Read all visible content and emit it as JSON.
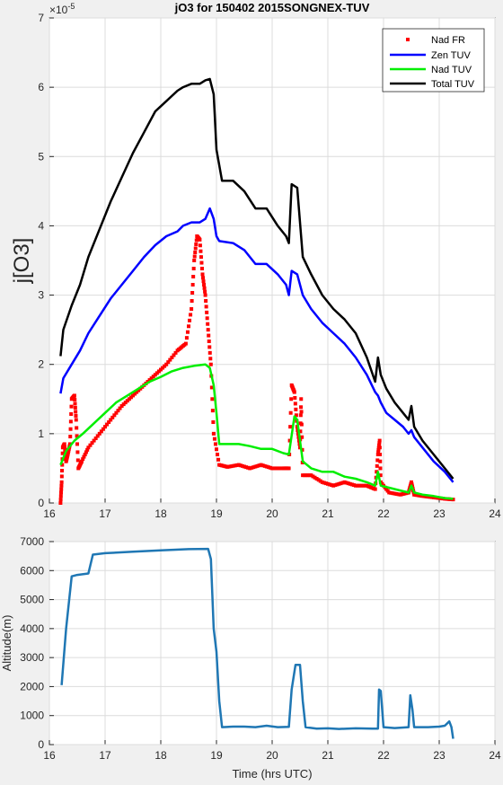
{
  "chart_data": [
    {
      "type": "line",
      "title": "jO3 for 150402 2015SONGNEX-TUV",
      "ylabel": "j[O3]",
      "xlabel": "",
      "exponent_label": "×10",
      "exponent_power": "-5",
      "xlim": [
        16,
        24
      ],
      "ylim": [
        0,
        7
      ],
      "xticks": [
        "16",
        "17",
        "18",
        "19",
        "20",
        "21",
        "22",
        "23",
        "24"
      ],
      "yticks": [
        "0",
        "1",
        "2",
        "3",
        "4",
        "5",
        "6",
        "7"
      ],
      "grid": true,
      "legend_position": "top-right",
      "series": [
        {
          "name": "Nad FR",
          "color": "#ff0000",
          "style": "markers",
          "points": [
            [
              16.2,
              0.0
            ],
            [
              16.22,
              0.3
            ],
            [
              16.24,
              0.8
            ],
            [
              16.27,
              0.85
            ],
            [
              16.3,
              0.6
            ],
            [
              16.33,
              0.7
            ],
            [
              16.37,
              0.85
            ],
            [
              16.4,
              1.5
            ],
            [
              16.45,
              1.55
            ],
            [
              16.48,
              1.2
            ],
            [
              16.52,
              0.5
            ],
            [
              16.58,
              0.6
            ],
            [
              16.7,
              0.8
            ],
            [
              16.9,
              1.0
            ],
            [
              17.1,
              1.2
            ],
            [
              17.3,
              1.4
            ],
            [
              17.5,
              1.55
            ],
            [
              17.7,
              1.7
            ],
            [
              17.9,
              1.85
            ],
            [
              18.1,
              2.0
            ],
            [
              18.3,
              2.2
            ],
            [
              18.45,
              2.3
            ],
            [
              18.55,
              2.8
            ],
            [
              18.6,
              3.5
            ],
            [
              18.65,
              3.85
            ],
            [
              18.7,
              3.8
            ],
            [
              18.75,
              3.3
            ],
            [
              18.8,
              3.0
            ],
            [
              18.85,
              2.5
            ],
            [
              18.9,
              2.0
            ],
            [
              18.95,
              1.0
            ],
            [
              19.05,
              0.55
            ],
            [
              19.2,
              0.52
            ],
            [
              19.4,
              0.55
            ],
            [
              19.6,
              0.5
            ],
            [
              19.8,
              0.55
            ],
            [
              20.0,
              0.5
            ],
            [
              20.2,
              0.5
            ],
            [
              20.3,
              0.5
            ],
            [
              20.35,
              1.7
            ],
            [
              20.4,
              1.6
            ],
            [
              20.45,
              1.1
            ],
            [
              20.5,
              0.8
            ],
            [
              20.52,
              1.5
            ],
            [
              20.55,
              0.4
            ],
            [
              20.7,
              0.4
            ],
            [
              20.9,
              0.3
            ],
            [
              21.1,
              0.25
            ],
            [
              21.3,
              0.3
            ],
            [
              21.5,
              0.25
            ],
            [
              21.7,
              0.25
            ],
            [
              21.85,
              0.2
            ],
            [
              21.9,
              0.7
            ],
            [
              21.93,
              0.9
            ],
            [
              21.95,
              0.3
            ],
            [
              22.1,
              0.15
            ],
            [
              22.3,
              0.12
            ],
            [
              22.45,
              0.15
            ],
            [
              22.5,
              0.3
            ],
            [
              22.55,
              0.12
            ],
            [
              22.7,
              0.1
            ],
            [
              22.9,
              0.08
            ],
            [
              23.1,
              0.06
            ],
            [
              23.25,
              0.05
            ]
          ]
        },
        {
          "name": "Zen TUV",
          "color": "#0000ff",
          "style": "line",
          "points": [
            [
              16.2,
              1.58
            ],
            [
              16.25,
              1.8
            ],
            [
              16.4,
              2.0
            ],
            [
              16.55,
              2.2
            ],
            [
              16.7,
              2.45
            ],
            [
              16.9,
              2.7
            ],
            [
              17.1,
              2.95
            ],
            [
              17.3,
              3.15
            ],
            [
              17.5,
              3.35
            ],
            [
              17.7,
              3.55
            ],
            [
              17.9,
              3.72
            ],
            [
              18.1,
              3.85
            ],
            [
              18.3,
              3.92
            ],
            [
              18.4,
              4.0
            ],
            [
              18.55,
              4.05
            ],
            [
              18.7,
              4.05
            ],
            [
              18.8,
              4.1
            ],
            [
              18.88,
              4.25
            ],
            [
              18.95,
              4.1
            ],
            [
              19.0,
              3.85
            ],
            [
              19.05,
              3.78
            ],
            [
              19.3,
              3.75
            ],
            [
              19.5,
              3.65
            ],
            [
              19.7,
              3.45
            ],
            [
              19.9,
              3.45
            ],
            [
              20.1,
              3.3
            ],
            [
              20.25,
              3.15
            ],
            [
              20.3,
              3.0
            ],
            [
              20.35,
              3.35
            ],
            [
              20.45,
              3.3
            ],
            [
              20.55,
              3.0
            ],
            [
              20.7,
              2.8
            ],
            [
              20.9,
              2.6
            ],
            [
              21.1,
              2.45
            ],
            [
              21.3,
              2.3
            ],
            [
              21.5,
              2.1
            ],
            [
              21.7,
              1.85
            ],
            [
              21.85,
              1.6
            ],
            [
              21.9,
              1.55
            ],
            [
              21.95,
              1.45
            ],
            [
              22.05,
              1.3
            ],
            [
              22.2,
              1.2
            ],
            [
              22.35,
              1.1
            ],
            [
              22.45,
              1.0
            ],
            [
              22.5,
              1.05
            ],
            [
              22.55,
              0.95
            ],
            [
              22.7,
              0.8
            ],
            [
              22.9,
              0.6
            ],
            [
              23.1,
              0.45
            ],
            [
              23.2,
              0.35
            ],
            [
              23.25,
              0.3
            ]
          ]
        },
        {
          "name": "Nad TUV",
          "color": "#00ee00",
          "style": "line",
          "points": [
            [
              16.2,
              0.55
            ],
            [
              16.3,
              0.75
            ],
            [
              16.45,
              0.9
            ],
            [
              16.6,
              1.0
            ],
            [
              16.8,
              1.15
            ],
            [
              17.0,
              1.3
            ],
            [
              17.2,
              1.45
            ],
            [
              17.4,
              1.55
            ],
            [
              17.6,
              1.65
            ],
            [
              17.8,
              1.75
            ],
            [
              18.0,
              1.82
            ],
            [
              18.2,
              1.9
            ],
            [
              18.4,
              1.95
            ],
            [
              18.6,
              1.98
            ],
            [
              18.8,
              2.0
            ],
            [
              18.88,
              1.95
            ],
            [
              18.95,
              1.7
            ],
            [
              19.0,
              1.3
            ],
            [
              19.05,
              0.85
            ],
            [
              19.2,
              0.85
            ],
            [
              19.4,
              0.85
            ],
            [
              19.6,
              0.82
            ],
            [
              19.8,
              0.78
            ],
            [
              20.0,
              0.78
            ],
            [
              20.2,
              0.72
            ],
            [
              20.3,
              0.7
            ],
            [
              20.4,
              1.25
            ],
            [
              20.45,
              1.2
            ],
            [
              20.55,
              0.6
            ],
            [
              20.7,
              0.5
            ],
            [
              20.9,
              0.45
            ],
            [
              21.1,
              0.45
            ],
            [
              21.3,
              0.38
            ],
            [
              21.5,
              0.35
            ],
            [
              21.7,
              0.3
            ],
            [
              21.85,
              0.25
            ],
            [
              21.9,
              0.45
            ],
            [
              21.95,
              0.25
            ],
            [
              22.1,
              0.22
            ],
            [
              22.3,
              0.18
            ],
            [
              22.45,
              0.15
            ],
            [
              22.5,
              0.25
            ],
            [
              22.55,
              0.15
            ],
            [
              22.7,
              0.12
            ],
            [
              22.9,
              0.1
            ],
            [
              23.1,
              0.07
            ],
            [
              23.25,
              0.06
            ]
          ]
        },
        {
          "name": "Total TUV",
          "color": "#000000",
          "style": "line",
          "points": [
            [
              16.2,
              2.12
            ],
            [
              16.25,
              2.5
            ],
            [
              16.4,
              2.85
            ],
            [
              16.55,
              3.15
            ],
            [
              16.7,
              3.55
            ],
            [
              16.9,
              3.95
            ],
            [
              17.1,
              4.35
            ],
            [
              17.3,
              4.7
            ],
            [
              17.5,
              5.05
            ],
            [
              17.7,
              5.35
            ],
            [
              17.9,
              5.65
            ],
            [
              18.1,
              5.8
            ],
            [
              18.3,
              5.95
            ],
            [
              18.4,
              6.0
            ],
            [
              18.55,
              6.05
            ],
            [
              18.7,
              6.05
            ],
            [
              18.8,
              6.1
            ],
            [
              18.88,
              6.12
            ],
            [
              18.95,
              5.9
            ],
            [
              19.0,
              5.1
            ],
            [
              19.1,
              4.65
            ],
            [
              19.3,
              4.65
            ],
            [
              19.5,
              4.5
            ],
            [
              19.7,
              4.25
            ],
            [
              19.9,
              4.25
            ],
            [
              20.1,
              4.0
            ],
            [
              20.25,
              3.85
            ],
            [
              20.3,
              3.75
            ],
            [
              20.35,
              4.6
            ],
            [
              20.45,
              4.55
            ],
            [
              20.55,
              3.55
            ],
            [
              20.7,
              3.3
            ],
            [
              20.9,
              3.0
            ],
            [
              21.1,
              2.8
            ],
            [
              21.3,
              2.65
            ],
            [
              21.5,
              2.45
            ],
            [
              21.7,
              2.1
            ],
            [
              21.85,
              1.75
            ],
            [
              21.9,
              2.1
            ],
            [
              21.95,
              1.85
            ],
            [
              22.05,
              1.65
            ],
            [
              22.2,
              1.45
            ],
            [
              22.35,
              1.3
            ],
            [
              22.45,
              1.2
            ],
            [
              22.5,
              1.4
            ],
            [
              22.55,
              1.1
            ],
            [
              22.7,
              0.9
            ],
            [
              22.9,
              0.7
            ],
            [
              23.1,
              0.5
            ],
            [
              23.2,
              0.4
            ],
            [
              23.25,
              0.35
            ]
          ]
        }
      ]
    },
    {
      "type": "line",
      "title": "",
      "xlabel": "Time (hrs UTC)",
      "ylabel": "Altitude(m)",
      "xlim": [
        16,
        24
      ],
      "ylim": [
        0,
        7000
      ],
      "xticks": [
        "16",
        "17",
        "18",
        "19",
        "20",
        "21",
        "22",
        "23",
        "24"
      ],
      "yticks": [
        "0",
        "1000",
        "2000",
        "3000",
        "4000",
        "5000",
        "6000",
        "7000"
      ],
      "grid": true,
      "series": [
        {
          "color": "#1f77b4",
          "style": "line",
          "points": [
            [
              16.22,
              2050
            ],
            [
              16.3,
              4000
            ],
            [
              16.4,
              5800
            ],
            [
              16.5,
              5850
            ],
            [
              16.7,
              5900
            ],
            [
              16.78,
              6550
            ],
            [
              17.0,
              6600
            ],
            [
              17.5,
              6650
            ],
            [
              18.0,
              6700
            ],
            [
              18.5,
              6740
            ],
            [
              18.85,
              6750
            ],
            [
              18.9,
              6400
            ],
            [
              18.95,
              4000
            ],
            [
              19.0,
              3200
            ],
            [
              19.05,
              1500
            ],
            [
              19.1,
              600
            ],
            [
              19.3,
              620
            ],
            [
              19.5,
              620
            ],
            [
              19.7,
              600
            ],
            [
              19.9,
              650
            ],
            [
              20.1,
              600
            ],
            [
              20.3,
              610
            ],
            [
              20.35,
              1900
            ],
            [
              20.42,
              2750
            ],
            [
              20.5,
              2750
            ],
            [
              20.55,
              1500
            ],
            [
              20.6,
              600
            ],
            [
              20.8,
              550
            ],
            [
              21.0,
              560
            ],
            [
              21.2,
              540
            ],
            [
              21.5,
              560
            ],
            [
              21.8,
              550
            ],
            [
              21.9,
              550
            ],
            [
              21.92,
              1900
            ],
            [
              21.95,
              1850
            ],
            [
              22.0,
              600
            ],
            [
              22.2,
              570
            ],
            [
              22.45,
              600
            ],
            [
              22.48,
              1700
            ],
            [
              22.52,
              1200
            ],
            [
              22.55,
              600
            ],
            [
              22.8,
              600
            ],
            [
              23.0,
              620
            ],
            [
              23.1,
              650
            ],
            [
              23.18,
              800
            ],
            [
              23.22,
              600
            ],
            [
              23.25,
              200
            ]
          ]
        }
      ]
    }
  ]
}
